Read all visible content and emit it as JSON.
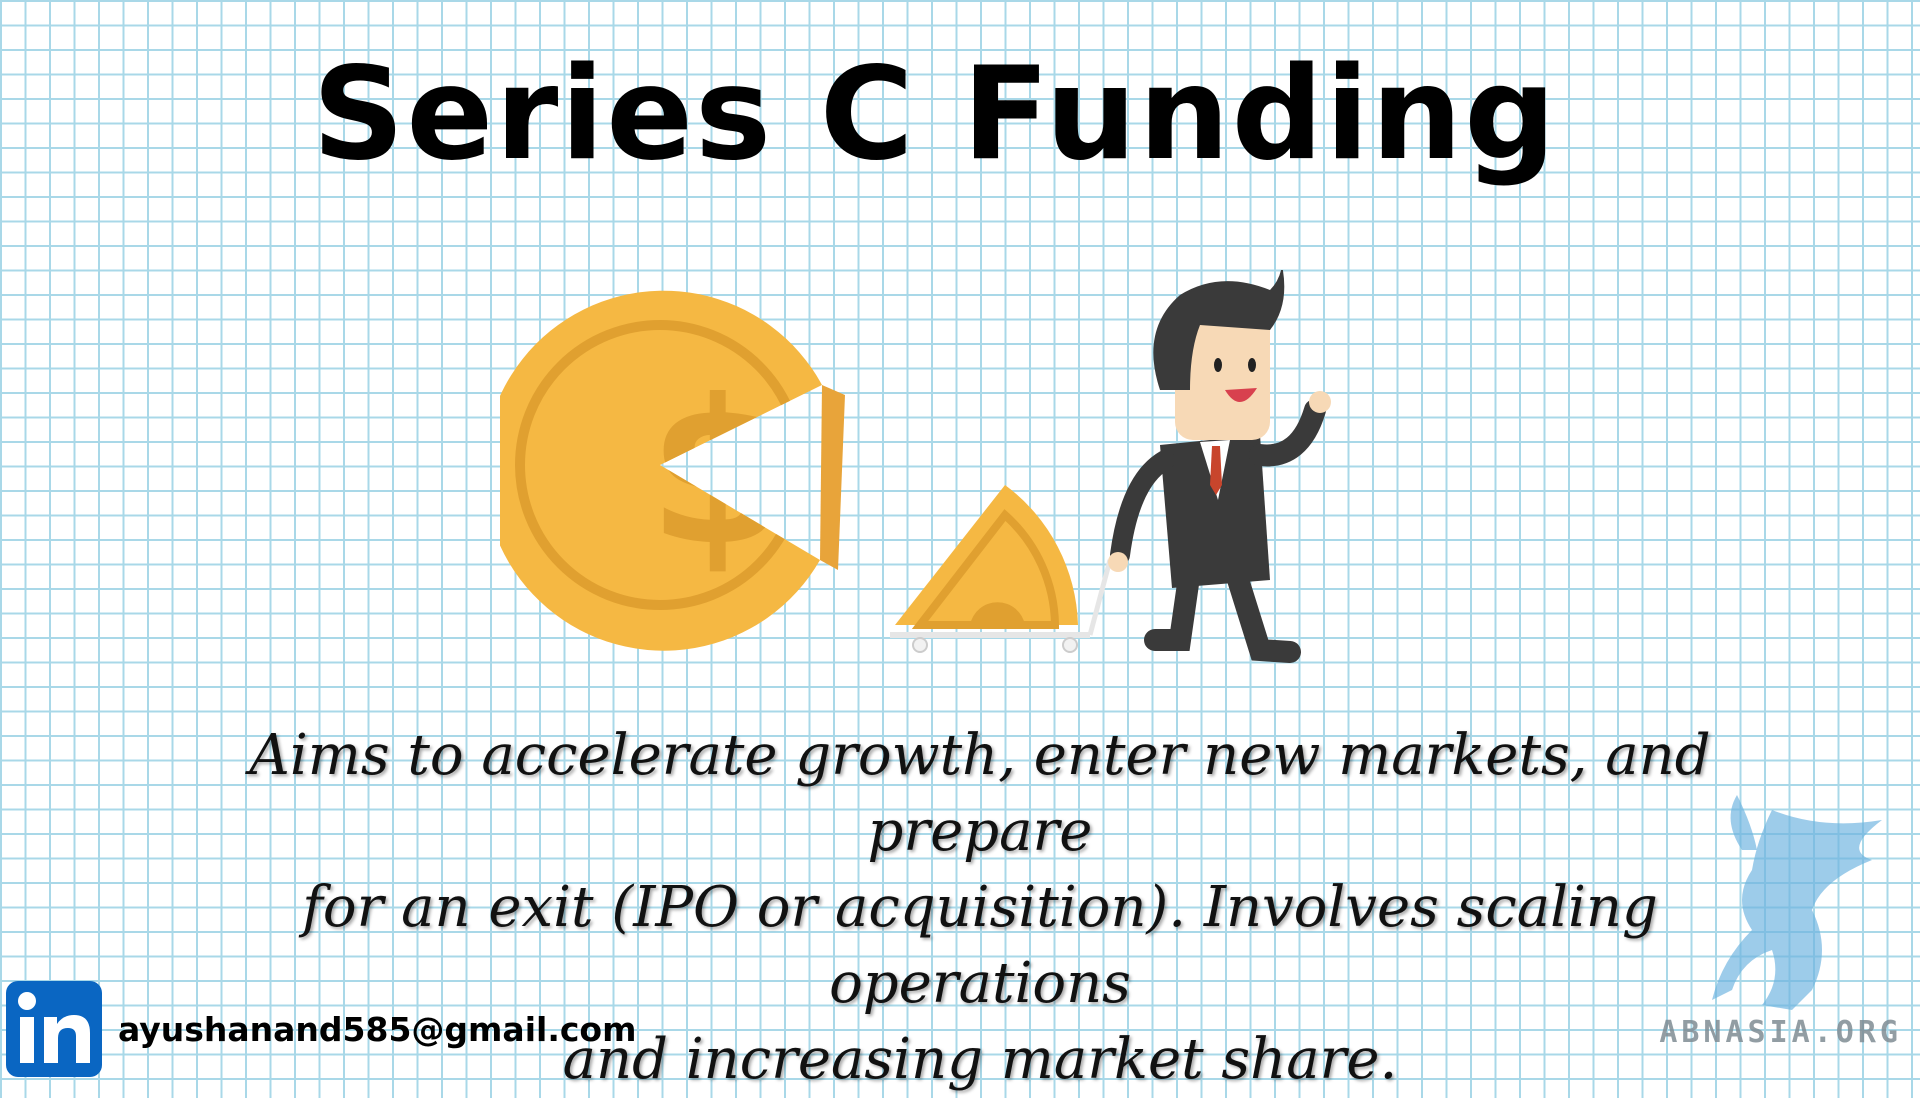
{
  "slide": {
    "title": "Series C Funding",
    "description_lines": [
      "Aims to accelerate growth, enter new markets, and prepare",
      "for an exit (IPO or acquisition). Involves scaling operations",
      "and increasing market share."
    ]
  },
  "contact": {
    "icon": "linkedin-icon",
    "email": "ayushanand585@gmail.com"
  },
  "watermark": {
    "text": "ABNASIA.ORG",
    "icon": "griffin-logo"
  },
  "illustration": {
    "icons": [
      "dollar-coin-icon",
      "coin-slice-icon",
      "businessman-icon"
    ]
  },
  "colors": {
    "grid": "#a9d8e8",
    "coin": "#f5b843",
    "coin_dark": "#e0a030",
    "linkedin": "#0a66c2",
    "suit": "#3a3a3a"
  }
}
